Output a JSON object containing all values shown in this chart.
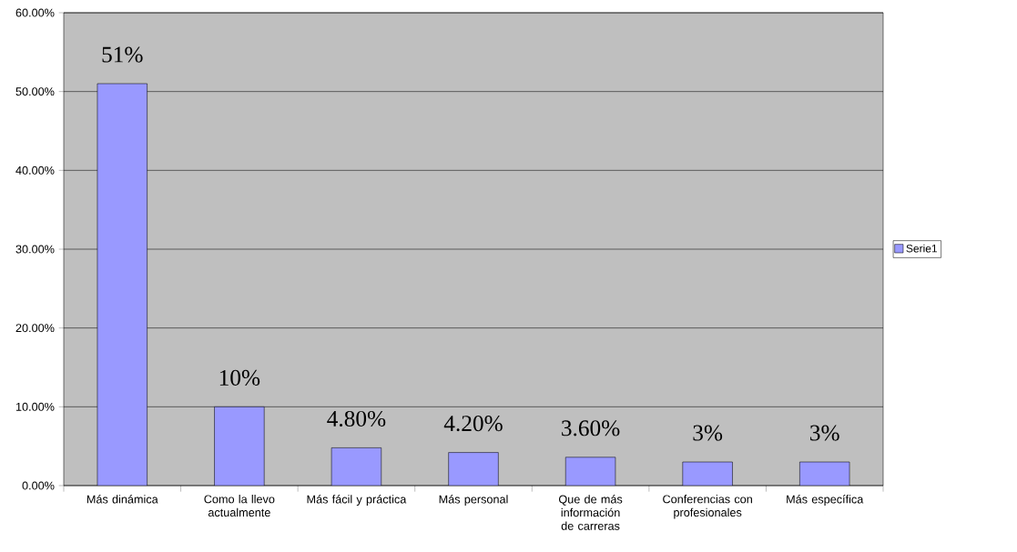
{
  "chart_data": {
    "type": "bar",
    "categories": [
      "Más dinámica",
      "Como la llevo actualmente",
      "Más fácil y práctica",
      "Más personal",
      "Que de más información de carreras",
      "Conferencias con profesionales",
      "Más específica"
    ],
    "series": [
      {
        "name": "Serie1",
        "color": "#9999ff",
        "values": [
          51,
          10,
          4.8,
          4.2,
          3.6,
          3,
          3
        ]
      }
    ],
    "value_labels": [
      "51%",
      "10%",
      "4.80%",
      "4.20%",
      "3.60%",
      "3%",
      "3%"
    ],
    "ylim": [
      0,
      60
    ],
    "yticks": [
      {
        "value": 0,
        "label": "0.00%"
      },
      {
        "value": 10,
        "label": "10.00%"
      },
      {
        "value": 20,
        "label": "20.00%"
      },
      {
        "value": 30,
        "label": "30.00%"
      },
      {
        "value": 40,
        "label": "40.00%"
      },
      {
        "value": 50,
        "label": "50.00%"
      },
      {
        "value": 60,
        "label": "60.00%"
      }
    ],
    "grid": "y",
    "legend": "right"
  }
}
